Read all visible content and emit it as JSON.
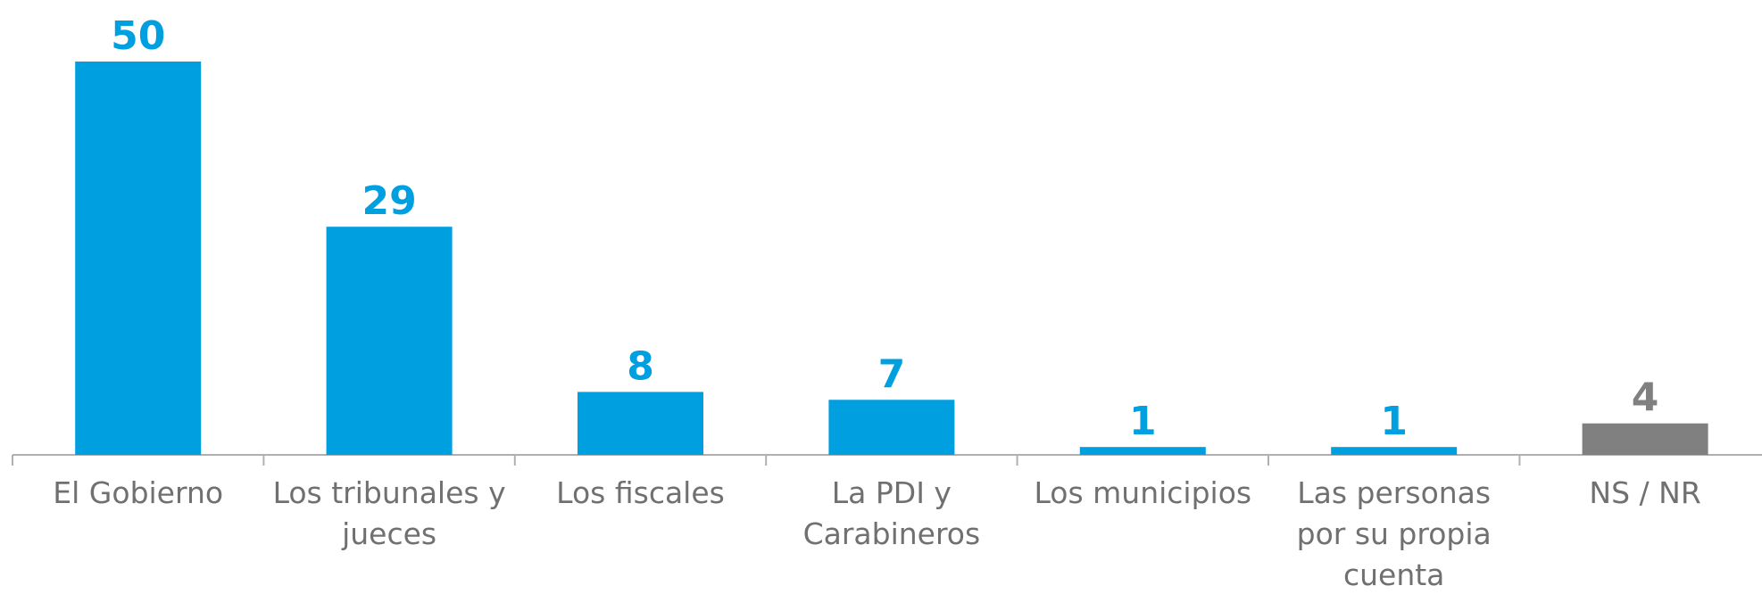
{
  "chart_data": {
    "type": "bar",
    "categories": [
      "El Gobierno",
      "Los tribunales y jueces",
      "Los fiscales",
      "La PDI y Carabineros",
      "Los municipios",
      "Las personas por su propia cuenta",
      "NS / NR"
    ],
    "values": [
      50,
      29,
      8,
      7,
      1,
      1,
      4
    ],
    "colors": [
      "#009fe0",
      "#009fe0",
      "#009fe0",
      "#009fe0",
      "#009fe0",
      "#009fe0",
      "#808080"
    ]
  }
}
